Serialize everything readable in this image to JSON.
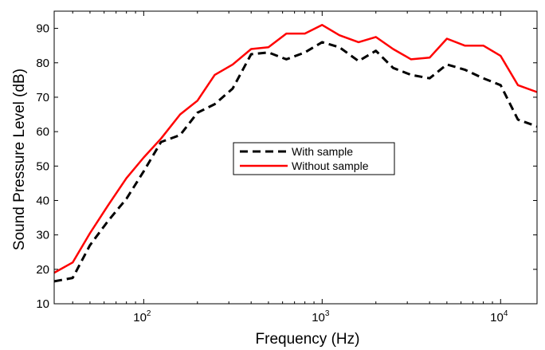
{
  "chart_data": {
    "type": "line",
    "xlabel": "Frequency (Hz)",
    "ylabel": "Sound Pressure Level (dB)",
    "x_scale": "log",
    "xlim": [
      31.5,
      16000
    ],
    "ylim": [
      10,
      95
    ],
    "x_ticks": [
      {
        "value": 100,
        "base": "10",
        "exp": "2"
      },
      {
        "value": 1000,
        "base": "10",
        "exp": "3"
      },
      {
        "value": 10000,
        "base": "10",
        "exp": "4"
      }
    ],
    "y_ticks": [
      "10",
      "20",
      "30",
      "40",
      "50",
      "60",
      "70",
      "80",
      "90"
    ],
    "grid": false,
    "legend_position": "center",
    "x": [
      31.5,
      40,
      50,
      63,
      80,
      100,
      125,
      160,
      200,
      250,
      315,
      400,
      500,
      630,
      800,
      1000,
      1250,
      1600,
      2000,
      2500,
      3150,
      4000,
      5000,
      6300,
      8000,
      10000,
      12500,
      16000
    ],
    "series": [
      {
        "name": "With sample",
        "color": "#000000",
        "dash": "dashed",
        "values": [
          16.5,
          17.5,
          27.0,
          34.0,
          40.5,
          48.5,
          57.0,
          59.0,
          65.5,
          68.0,
          72.5,
          82.5,
          83.0,
          81.0,
          83.0,
          86.0,
          84.5,
          80.5,
          83.5,
          78.5,
          76.5,
          75.5,
          79.5,
          78.0,
          75.5,
          73.5,
          63.5,
          61.5
        ]
      },
      {
        "name": "Without sample",
        "color": "#ff0000",
        "dash": "solid",
        "values": [
          19.0,
          22.0,
          30.5,
          38.5,
          46.5,
          52.5,
          58.0,
          65.0,
          69.0,
          76.5,
          79.5,
          84.0,
          84.5,
          88.5,
          88.5,
          91.0,
          88.0,
          86.0,
          87.5,
          84.0,
          81.0,
          81.5,
          87.0,
          85.0,
          85.0,
          82.0,
          73.5,
          71.5
        ]
      }
    ]
  }
}
